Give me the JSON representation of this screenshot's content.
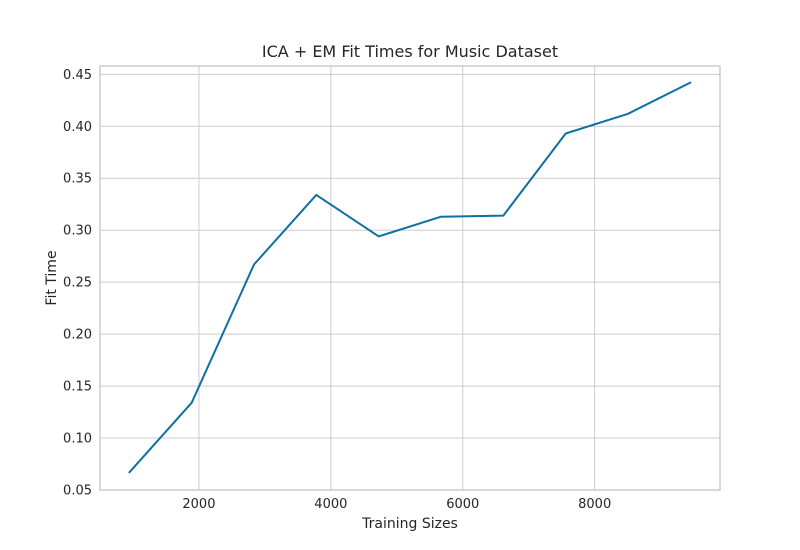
{
  "chart_data": {
    "type": "line",
    "title": "ICA + EM Fit Times for Music Dataset",
    "xlabel": "Training Sizes",
    "ylabel": "Fit Time",
    "xlim": [
      500,
      9900
    ],
    "ylim": [
      0.05,
      0.458
    ],
    "xticks": [
      2000,
      4000,
      6000,
      8000
    ],
    "xtick_labels": [
      "2000",
      "4000",
      "6000",
      "8000"
    ],
    "yticks": [
      0.05,
      0.1,
      0.15,
      0.2,
      0.25,
      0.3,
      0.35,
      0.4,
      0.45
    ],
    "ytick_labels": [
      "0.05",
      "0.10",
      "0.15",
      "0.20",
      "0.25",
      "0.30",
      "0.35",
      "0.40",
      "0.45"
    ],
    "grid": true,
    "legend": "none",
    "series": [
      {
        "color": "#0e6fa1",
        "x": [
          945,
          1890,
          2835,
          3780,
          4725,
          5670,
          6615,
          7560,
          8505,
          9450
        ],
        "y": [
          0.067,
          0.134,
          0.267,
          0.334,
          0.294,
          0.313,
          0.314,
          0.393,
          0.412,
          0.442
        ]
      }
    ]
  },
  "style": {
    "grid_color": "#cccccc",
    "spine_color": "#cccccc",
    "text_color": "#262626"
  }
}
